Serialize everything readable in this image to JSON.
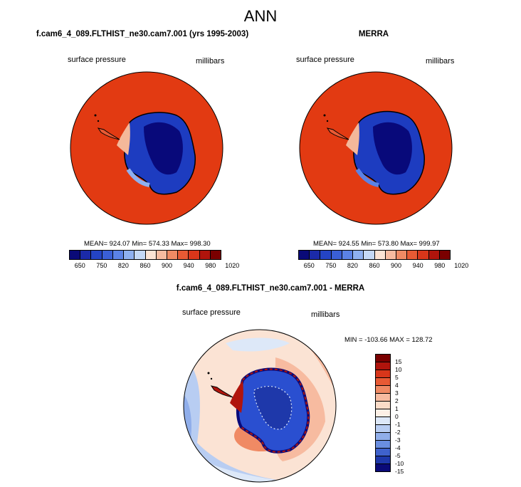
{
  "figure_title": "ANN",
  "panels": [
    {
      "title": "f.cam6_4_089.FLTHIST_ne30.cam7.001 (yrs 1995-2003)",
      "variable": "surface pressure",
      "units": "millibars",
      "stats": "MEAN= 924.07  Min= 574.33  Max= 998.30"
    },
    {
      "title": "MERRA",
      "variable": "surface pressure",
      "units": "millibars",
      "stats": "MEAN= 924.55  Min= 573.80  Max= 999.97"
    },
    {
      "title": "f.cam6_4_089.FLTHIST_ne30.cam7.001 - MERRA",
      "variable": "surface pressure",
      "units": "millibars",
      "stats": "MIN = -103.66 MAX = 128.72"
    }
  ],
  "colorbar_abs": {
    "colors": [
      "#0a0a78",
      "#1b2aa8",
      "#2444c4",
      "#3a5fd6",
      "#5b82e6",
      "#8eb0f0",
      "#c4d8f6",
      "#fbe3d4",
      "#f7bba0",
      "#f08a64",
      "#e85a34",
      "#d8361a",
      "#b0140c",
      "#7a0000"
    ],
    "tick_labels": [
      "650",
      "750",
      "820",
      "860",
      "900",
      "940",
      "980",
      "1020"
    ]
  },
  "colorbar_diff": {
    "colors": [
      "#7a0000",
      "#b0140c",
      "#d8361a",
      "#e85a34",
      "#f08a64",
      "#f7bba0",
      "#fbdcc8",
      "#fdf0e6",
      "#dde8f8",
      "#b8cdf2",
      "#90aeea",
      "#6a8ee0",
      "#3f62cc",
      "#1e38aa",
      "#0a0a78"
    ],
    "tick_labels": [
      "15",
      "10",
      "5",
      "4",
      "3",
      "2",
      "1",
      "0",
      "-1",
      "-2",
      "-3",
      "-4",
      "-5",
      "-10",
      "-15"
    ]
  }
}
